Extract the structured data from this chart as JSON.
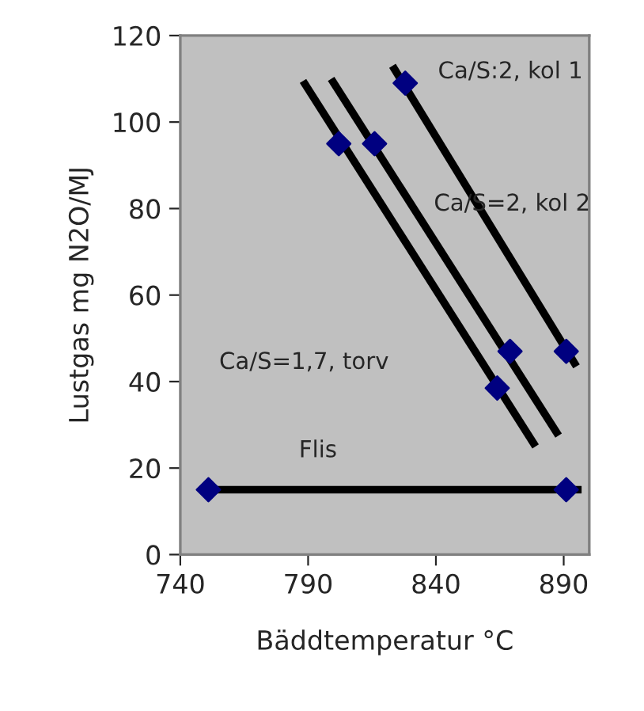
{
  "chart_data": {
    "type": "scatter",
    "xlabel": "Bäddtemperatur °C",
    "ylabel": "Lustgas mg N2O/MJ",
    "xlim": [
      740,
      900
    ],
    "xticks": [
      740,
      790,
      840,
      890
    ],
    "ylim": [
      0,
      120
    ],
    "yticks": [
      0,
      20,
      40,
      60,
      80,
      100,
      120
    ],
    "grid": false,
    "legend": false,
    "series": [
      {
        "type": "line",
        "color": "#000000",
        "marker": "none",
        "x": [
          750,
          897
        ],
        "values": [
          15,
          15
        ]
      },
      {
        "type": "line",
        "color": "#000000",
        "marker": "none",
        "x": [
          788,
          879
        ],
        "values": [
          109.5,
          25
        ]
      },
      {
        "type": "line",
        "color": "#000000",
        "marker": "none",
        "x": [
          799,
          888
        ],
        "values": [
          110,
          27.5
        ]
      },
      {
        "type": "line",
        "color": "#000000",
        "marker": "none",
        "x": [
          823,
          895
        ],
        "values": [
          113,
          43.5
        ]
      },
      {
        "color": "#000080",
        "marker": "diamond",
        "x": [
          751,
          891,
          802,
          864,
          816,
          869,
          828,
          891
        ],
        "values": [
          15,
          15,
          95,
          38.5,
          95,
          47,
          109,
          47
        ]
      }
    ],
    "annotations": [
      "Ca/S:2, kol 1",
      "Ca/S=2, kol 2",
      "Ca/S=1,7, torv",
      "Flis"
    ]
  }
}
